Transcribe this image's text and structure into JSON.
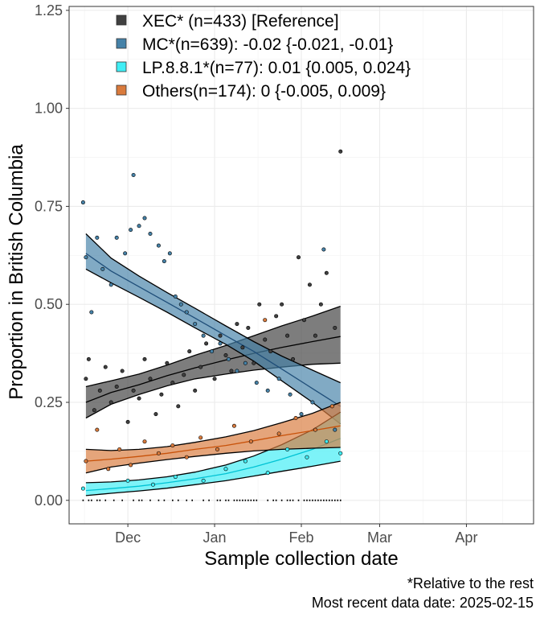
{
  "chart_data": {
    "type": "scatter",
    "xlabel": "Sample collection date",
    "ylabel": "Proportion in British Columbia",
    "x_ticks": [
      "Dec",
      "Jan",
      "Feb",
      "Mar",
      "Apr"
    ],
    "x_tick_dates": [
      "2024-12-01",
      "2025-01-01",
      "2025-02-01",
      "2025-03-01",
      "2025-04-01"
    ],
    "xlim": [
      "2024-11-10",
      "2025-04-25"
    ],
    "y_ticks": [
      "0.00",
      "0.25",
      "0.50",
      "0.75",
      "1.00",
      "1.25"
    ],
    "y_tick_values": [
      0,
      0.25,
      0.5,
      0.75,
      1.0,
      1.25
    ],
    "ylim": [
      -0.06,
      1.26
    ],
    "grid": true,
    "legend_position": "top-left",
    "captions": [
      "*Relative to the rest",
      "Most recent data date: 2025-02-15"
    ],
    "series": [
      {
        "name": "XEC* (n=433)  [Reference]",
        "color": "#404040",
        "line_color": "#000000",
        "fit": [
          [
            "2024-11-16",
            0.25
          ],
          [
            "2024-11-25",
            0.275
          ],
          [
            "2024-12-05",
            0.295
          ],
          [
            "2024-12-15",
            0.318
          ],
          [
            "2024-12-25",
            0.338
          ],
          [
            "2025-01-05",
            0.358
          ],
          [
            "2025-01-15",
            0.375
          ],
          [
            "2025-01-25",
            0.39
          ],
          [
            "2025-02-05",
            0.405
          ],
          [
            "2025-02-15",
            0.418
          ]
        ],
        "lower": [
          [
            "2024-11-16",
            0.21
          ],
          [
            "2024-11-25",
            0.245
          ],
          [
            "2024-12-05",
            0.27
          ],
          [
            "2024-12-15",
            0.292
          ],
          [
            "2024-12-25",
            0.31
          ],
          [
            "2025-01-05",
            0.322
          ],
          [
            "2025-01-15",
            0.332
          ],
          [
            "2025-01-25",
            0.34
          ],
          [
            "2025-02-05",
            0.347
          ],
          [
            "2025-02-15",
            0.35
          ]
        ],
        "upper": [
          [
            "2024-11-16",
            0.29
          ],
          [
            "2024-11-25",
            0.305
          ],
          [
            "2024-12-05",
            0.322
          ],
          [
            "2024-12-15",
            0.345
          ],
          [
            "2024-12-25",
            0.37
          ],
          [
            "2025-01-05",
            0.395
          ],
          [
            "2025-01-15",
            0.42
          ],
          [
            "2025-01-25",
            0.445
          ],
          [
            "2025-02-05",
            0.47
          ],
          [
            "2025-02-15",
            0.495
          ]
        ],
        "points": [
          [
            "2024-11-16",
            0.31
          ],
          [
            "2024-11-17",
            0.36
          ],
          [
            "2024-11-19",
            0.23
          ],
          [
            "2024-11-21",
            0.28
          ],
          [
            "2024-11-23",
            0.34
          ],
          [
            "2024-11-25",
            0.25
          ],
          [
            "2024-11-27",
            0.29
          ],
          [
            "2024-11-29",
            0.33
          ],
          [
            "2024-12-01",
            0.2
          ],
          [
            "2024-12-03",
            0.28
          ],
          [
            "2024-12-05",
            0.26
          ],
          [
            "2024-12-07",
            0.36
          ],
          [
            "2024-12-09",
            0.31
          ],
          [
            "2024-12-11",
            0.22
          ],
          [
            "2024-12-13",
            0.27
          ],
          [
            "2024-12-15",
            0.35
          ],
          [
            "2024-12-17",
            0.3
          ],
          [
            "2024-12-19",
            0.24
          ],
          [
            "2024-12-21",
            0.32
          ],
          [
            "2024-12-23",
            0.38
          ],
          [
            "2024-12-25",
            0.28
          ],
          [
            "2024-12-27",
            0.34
          ],
          [
            "2024-12-29",
            0.4
          ],
          [
            "2025-01-01",
            0.31
          ],
          [
            "2025-01-03",
            0.42
          ],
          [
            "2025-01-05",
            0.37
          ],
          [
            "2025-01-07",
            0.33
          ],
          [
            "2025-01-09",
            0.45
          ],
          [
            "2025-01-11",
            0.39
          ],
          [
            "2025-01-13",
            0.44
          ],
          [
            "2025-01-15",
            0.35
          ],
          [
            "2025-01-17",
            0.5
          ],
          [
            "2025-01-19",
            0.41
          ],
          [
            "2025-01-21",
            0.38
          ],
          [
            "2025-01-23",
            0.47
          ],
          [
            "2025-01-25",
            0.5
          ],
          [
            "2025-01-27",
            0.42
          ],
          [
            "2025-01-29",
            0.36
          ],
          [
            "2025-01-31",
            0.62
          ],
          [
            "2025-02-02",
            0.46
          ],
          [
            "2025-02-04",
            0.55
          ],
          [
            "2025-02-06",
            0.42
          ],
          [
            "2025-02-08",
            0.5
          ],
          [
            "2025-02-10",
            0.58
          ],
          [
            "2025-02-13",
            0.44
          ],
          [
            "2025-02-15",
            0.89
          ]
        ]
      },
      {
        "name": "MC*(n=639): -0.02 {-0.021, -0.01}",
        "color": "#4682a8",
        "line_color": "#1f4e79",
        "fit": [
          [
            "2024-11-16",
            0.63
          ],
          [
            "2024-11-25",
            0.585
          ],
          [
            "2024-12-05",
            0.545
          ],
          [
            "2024-12-15",
            0.505
          ],
          [
            "2024-12-25",
            0.465
          ],
          [
            "2025-01-05",
            0.42
          ],
          [
            "2025-01-15",
            0.38
          ],
          [
            "2025-01-25",
            0.335
          ],
          [
            "2025-02-05",
            0.285
          ],
          [
            "2025-02-15",
            0.24
          ]
        ],
        "lower": [
          [
            "2024-11-16",
            0.59
          ],
          [
            "2024-11-25",
            0.555
          ],
          [
            "2024-12-05",
            0.518
          ],
          [
            "2024-12-15",
            0.48
          ],
          [
            "2024-12-25",
            0.44
          ],
          [
            "2025-01-05",
            0.398
          ],
          [
            "2025-01-15",
            0.355
          ],
          [
            "2025-01-25",
            0.305
          ],
          [
            "2025-02-05",
            0.25
          ],
          [
            "2025-02-15",
            0.195
          ]
        ],
        "upper": [
          [
            "2024-11-16",
            0.68
          ],
          [
            "2024-11-25",
            0.618
          ],
          [
            "2024-12-05",
            0.572
          ],
          [
            "2024-12-15",
            0.53
          ],
          [
            "2024-12-25",
            0.49
          ],
          [
            "2025-01-05",
            0.445
          ],
          [
            "2025-01-15",
            0.405
          ],
          [
            "2025-01-25",
            0.368
          ],
          [
            "2025-02-05",
            0.332
          ],
          [
            "2025-02-15",
            0.3
          ]
        ],
        "points": [
          [
            "2024-11-15",
            0.76
          ],
          [
            "2024-11-16",
            0.62
          ],
          [
            "2024-11-18",
            0.48
          ],
          [
            "2024-11-20",
            0.67
          ],
          [
            "2024-11-22",
            0.59
          ],
          [
            "2024-11-25",
            0.55
          ],
          [
            "2024-11-27",
            0.67
          ],
          [
            "2024-11-30",
            0.63
          ],
          [
            "2024-12-02",
            0.69
          ],
          [
            "2024-12-03",
            0.83
          ],
          [
            "2024-12-05",
            0.7
          ],
          [
            "2024-12-07",
            0.72
          ],
          [
            "2024-12-09",
            0.68
          ],
          [
            "2024-12-12",
            0.65
          ],
          [
            "2024-12-14",
            0.61
          ],
          [
            "2024-12-16",
            0.63
          ],
          [
            "2024-12-18",
            0.52
          ],
          [
            "2024-12-20",
            0.5
          ],
          [
            "2024-12-22",
            0.48
          ],
          [
            "2024-12-25",
            0.45
          ],
          [
            "2024-12-28",
            0.42
          ],
          [
            "2024-12-31",
            0.38
          ],
          [
            "2025-01-03",
            0.4
          ],
          [
            "2025-01-06",
            0.36
          ],
          [
            "2025-01-09",
            0.33
          ],
          [
            "2025-01-12",
            0.35
          ],
          [
            "2025-01-16",
            0.3
          ],
          [
            "2025-01-20",
            0.28
          ],
          [
            "2025-01-24",
            0.31
          ],
          [
            "2025-01-28",
            0.27
          ],
          [
            "2025-02-01",
            0.22
          ],
          [
            "2025-02-05",
            0.25
          ],
          [
            "2025-02-09",
            0.64
          ],
          [
            "2025-02-13",
            0.18
          ]
        ]
      },
      {
        "name": "LP.8.8.1*(n=77): 0.01 {0.005, 0.024}",
        "color": "#40eef5",
        "line_color": "#00c3d4",
        "fit": [
          [
            "2024-11-16",
            0.025
          ],
          [
            "2024-11-25",
            0.03
          ],
          [
            "2024-12-05",
            0.036
          ],
          [
            "2024-12-15",
            0.045
          ],
          [
            "2024-12-25",
            0.055
          ],
          [
            "2025-01-05",
            0.068
          ],
          [
            "2025-01-15",
            0.085
          ],
          [
            "2025-01-25",
            0.105
          ],
          [
            "2025-02-05",
            0.13
          ],
          [
            "2025-02-15",
            0.158
          ]
        ],
        "lower": [
          [
            "2024-11-16",
            0.012
          ],
          [
            "2024-11-25",
            0.018
          ],
          [
            "2024-12-05",
            0.024
          ],
          [
            "2024-12-15",
            0.031
          ],
          [
            "2024-12-25",
            0.04
          ],
          [
            "2025-01-05",
            0.05
          ],
          [
            "2025-01-15",
            0.062
          ],
          [
            "2025-01-25",
            0.074
          ],
          [
            "2025-02-05",
            0.087
          ],
          [
            "2025-02-15",
            0.1
          ]
        ],
        "upper": [
          [
            "2024-11-16",
            0.045
          ],
          [
            "2024-11-25",
            0.047
          ],
          [
            "2024-12-05",
            0.052
          ],
          [
            "2024-12-15",
            0.06
          ],
          [
            "2024-12-25",
            0.072
          ],
          [
            "2025-01-05",
            0.09
          ],
          [
            "2025-01-15",
            0.113
          ],
          [
            "2025-01-25",
            0.142
          ],
          [
            "2025-02-05",
            0.18
          ],
          [
            "2025-02-15",
            0.225
          ]
        ],
        "points": [
          [
            "2024-11-15",
            0.03
          ],
          [
            "2024-12-01",
            0.05
          ],
          [
            "2024-12-10",
            0.04
          ],
          [
            "2024-12-18",
            0.06
          ],
          [
            "2024-12-28",
            0.05
          ],
          [
            "2025-01-05",
            0.08
          ],
          [
            "2025-01-12",
            0.1
          ],
          [
            "2025-01-20",
            0.07
          ],
          [
            "2025-01-27",
            0.13
          ],
          [
            "2025-02-03",
            0.11
          ],
          [
            "2025-02-10",
            0.15
          ],
          [
            "2025-02-15",
            0.12
          ]
        ]
      },
      {
        "name": "Others(n=174): 0 {-0.005, 0.009}",
        "color": "#d97a3c",
        "line_color": "#c8520a",
        "fit": [
          [
            "2024-11-16",
            0.1
          ],
          [
            "2024-11-25",
            0.105
          ],
          [
            "2024-12-05",
            0.112
          ],
          [
            "2024-12-15",
            0.12
          ],
          [
            "2024-12-25",
            0.13
          ],
          [
            "2025-01-05",
            0.14
          ],
          [
            "2025-01-15",
            0.152
          ],
          [
            "2025-01-25",
            0.165
          ],
          [
            "2025-02-05",
            0.178
          ],
          [
            "2025-02-15",
            0.19
          ]
        ],
        "lower": [
          [
            "2024-11-16",
            0.07
          ],
          [
            "2024-11-25",
            0.085
          ],
          [
            "2024-12-05",
            0.095
          ],
          [
            "2024-12-15",
            0.104
          ],
          [
            "2024-12-25",
            0.112
          ],
          [
            "2025-01-05",
            0.12
          ],
          [
            "2025-01-15",
            0.126
          ],
          [
            "2025-01-25",
            0.13
          ],
          [
            "2025-02-05",
            0.133
          ],
          [
            "2025-02-15",
            0.135
          ]
        ],
        "upper": [
          [
            "2024-11-16",
            0.13
          ],
          [
            "2024-11-25",
            0.127
          ],
          [
            "2024-12-05",
            0.13
          ],
          [
            "2024-12-15",
            0.137
          ],
          [
            "2024-12-25",
            0.148
          ],
          [
            "2025-01-05",
            0.162
          ],
          [
            "2025-01-15",
            0.178
          ],
          [
            "2025-01-25",
            0.198
          ],
          [
            "2025-02-05",
            0.222
          ],
          [
            "2025-02-15",
            0.25
          ]
        ],
        "points": [
          [
            "2024-11-16",
            0.1
          ],
          [
            "2024-11-20",
            0.18
          ],
          [
            "2024-11-24",
            0.08
          ],
          [
            "2024-11-28",
            0.13
          ],
          [
            "2024-12-02",
            0.09
          ],
          [
            "2024-12-07",
            0.15
          ],
          [
            "2024-12-12",
            0.12
          ],
          [
            "2024-12-17",
            0.14
          ],
          [
            "2024-12-22",
            0.11
          ],
          [
            "2024-12-27",
            0.16
          ],
          [
            "2025-01-02",
            0.13
          ],
          [
            "2025-01-08",
            0.19
          ],
          [
            "2025-01-14",
            0.15
          ],
          [
            "2025-01-19",
            0.46
          ],
          [
            "2025-01-24",
            0.17
          ],
          [
            "2025-01-30",
            0.21
          ],
          [
            "2025-02-06",
            0.18
          ],
          [
            "2025-02-12",
            0.24
          ]
        ]
      }
    ],
    "zero_tick_dates": [
      "2024-11-15",
      "2024-11-17",
      "2024-11-18",
      "2024-11-20",
      "2024-11-21",
      "2024-11-23",
      "2024-11-26",
      "2024-11-29",
      "2024-12-03",
      "2024-12-05",
      "2024-12-06",
      "2024-12-09",
      "2024-12-12",
      "2024-12-14",
      "2024-12-17",
      "2024-12-19",
      "2024-12-22",
      "2024-12-24",
      "2024-12-28",
      "2024-12-30",
      "2025-01-02",
      "2025-01-03",
      "2025-01-05",
      "2025-01-06",
      "2025-01-08",
      "2025-01-09",
      "2025-01-10",
      "2025-01-11",
      "2025-01-12",
      "2025-01-13",
      "2025-01-14",
      "2025-01-15",
      "2025-01-16",
      "2025-01-20",
      "2025-01-22",
      "2025-01-23",
      "2025-01-25",
      "2025-01-27",
      "2025-01-28",
      "2025-01-29",
      "2025-01-31",
      "2025-02-02",
      "2025-02-03",
      "2025-02-04",
      "2025-02-05",
      "2025-02-06",
      "2025-02-07",
      "2025-02-08",
      "2025-02-09",
      "2025-02-10",
      "2025-02-11",
      "2025-02-12",
      "2025-02-13",
      "2025-02-14",
      "2025-02-15"
    ]
  }
}
